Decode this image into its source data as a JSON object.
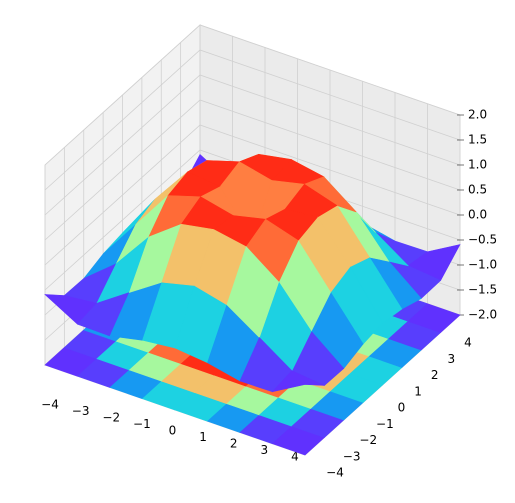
{
  "chart_data": {
    "type": "surface3d",
    "cmap": "rainbow",
    "x": [
      -4,
      -3,
      -2,
      -1,
      0,
      1,
      2,
      3,
      4
    ],
    "y": [
      -4,
      -3,
      -2,
      -1,
      0,
      1,
      2,
      3,
      4
    ],
    "z": [
      [
        -0.59,
        -0.96,
        -0.97,
        -0.83,
        -0.76,
        -0.83,
        -0.97,
        -0.96,
        -0.59
      ],
      [
        -0.96,
        -0.89,
        -0.45,
        -0.02,
        0.14,
        -0.02,
        -0.45,
        -0.89,
        -0.96
      ],
      [
        -0.97,
        -0.45,
        0.31,
        0.79,
        0.91,
        0.79,
        0.31,
        -0.45,
        -0.97
      ],
      [
        -0.83,
        -0.02,
        0.79,
        0.99,
        0.84,
        0.99,
        0.79,
        -0.02,
        -0.83
      ],
      [
        -0.76,
        0.14,
        0.91,
        0.84,
        0,
        0.84,
        0.91,
        0.14,
        -0.76
      ],
      [
        -0.83,
        -0.02,
        0.79,
        0.99,
        0.84,
        0.99,
        0.79,
        -0.02,
        -0.83
      ],
      [
        -0.97,
        -0.45,
        0.31,
        0.79,
        0.91,
        0.79,
        0.31,
        -0.45,
        -0.97
      ],
      [
        -0.96,
        -0.89,
        -0.45,
        -0.02,
        0.14,
        -0.02,
        -0.45,
        -0.89,
        -0.96
      ],
      [
        -0.59,
        -0.96,
        -0.97,
        -0.83,
        -0.76,
        -0.83,
        -0.97,
        -0.96,
        -0.59
      ]
    ],
    "xlim": [
      -4,
      4
    ],
    "ylim": [
      -4,
      4
    ],
    "zlim": [
      -2,
      2
    ],
    "xticks": [
      {
        "value": -4,
        "label": "−4"
      },
      {
        "value": -3,
        "label": "−3"
      },
      {
        "value": -2,
        "label": "−2"
      },
      {
        "value": -1,
        "label": "−1"
      },
      0,
      1,
      2,
      3,
      4
    ],
    "yticks": [
      {
        "value": -4,
        "label": "−4"
      },
      {
        "value": -3,
        "label": "−3"
      },
      {
        "value": -2,
        "label": "−2"
      },
      {
        "value": -1,
        "label": "−1"
      },
      0,
      1,
      2,
      3,
      4
    ],
    "zticks": [
      {
        "value": -2,
        "label": "−2.0"
      },
      {
        "value": -1.5,
        "label": "−1.5"
      },
      {
        "value": -1,
        "label": "−1.0"
      },
      {
        "value": -0.5,
        "label": "−0.5"
      },
      {
        "value": 0,
        "label": "0.0"
      },
      {
        "value": 0.5,
        "label": "0.5"
      },
      {
        "value": 1,
        "label": "1.0"
      },
      {
        "value": 1.5,
        "label": "1.5"
      },
      {
        "value": 2,
        "label": "2.0"
      }
    ],
    "grid": true
  }
}
